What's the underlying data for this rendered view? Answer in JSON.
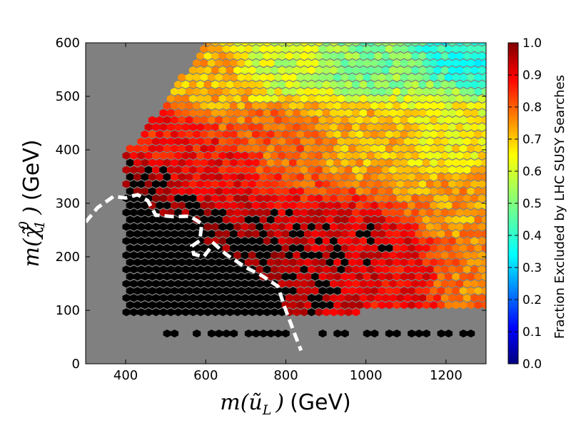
{
  "chart_data": {
    "type": "heatmap",
    "variant": "hexbin",
    "xlabel": {
      "prefix": "m(",
      "symbol": "ũ",
      "subscript": "L",
      "suffix": ")",
      "unit": "(GeV)"
    },
    "ylabel": {
      "prefix": "m(",
      "symbol": "χ̃",
      "subscript": "1",
      "superscript": "0",
      "suffix": ")",
      "unit": "(GeV)"
    },
    "xlim": [
      300,
      1300
    ],
    "ylim": [
      0,
      600
    ],
    "xticks": [
      400,
      600,
      800,
      1000,
      1200
    ],
    "yticks": [
      0,
      100,
      200,
      300,
      400,
      500,
      600
    ],
    "background_color": "#808080",
    "hex_size_gev": {
      "dx": 18.5,
      "dy": 13.3
    },
    "colorbar": {
      "label": "Fraction Excluded by LHC SUSY Searches",
      "range": [
        0.0,
        1.0
      ],
      "ticks": [
        "0.0",
        "0.1",
        "0.2",
        "0.3",
        "0.4",
        "0.5",
        "0.6",
        "0.7",
        "0.8",
        "0.9",
        "1.0"
      ],
      "colormap": "jet"
    },
    "regions": {
      "black_exclusion_region": "fraction = 1.0 (fully excluded) for low masses below the dashed line",
      "coverage_upper_left_edge": [
        [
          300,
          300
        ],
        [
          340,
          320
        ],
        [
          400,
          390
        ],
        [
          450,
          440
        ],
        [
          500,
          490
        ],
        [
          550,
          545
        ],
        [
          590,
          600
        ]
      ],
      "coverage_lower_edge": [
        [
          420,
          90
        ],
        [
          550,
          90
        ],
        [
          850,
          95
        ],
        [
          1300,
          100
        ]
      ],
      "sparse_row_y": 55
    },
    "fraction_anchors": [
      {
        "x": 420,
        "y": 320,
        "value": 1.0
      },
      {
        "x": 550,
        "y": 250,
        "value": 1.0
      },
      {
        "x": 700,
        "y": 180,
        "value": 1.0
      },
      {
        "x": 800,
        "y": 150,
        "value": 0.97
      },
      {
        "x": 900,
        "y": 200,
        "value": 0.93
      },
      {
        "x": 1000,
        "y": 200,
        "value": 0.92
      },
      {
        "x": 1100,
        "y": 150,
        "value": 0.88
      },
      {
        "x": 1250,
        "y": 150,
        "value": 0.75
      },
      {
        "x": 1250,
        "y": 300,
        "value": 0.72
      },
      {
        "x": 600,
        "y": 350,
        "value": 0.88
      },
      {
        "x": 500,
        "y": 430,
        "value": 0.86
      },
      {
        "x": 800,
        "y": 420,
        "value": 0.78
      },
      {
        "x": 1000,
        "y": 420,
        "value": 0.7
      },
      {
        "x": 1200,
        "y": 420,
        "value": 0.64
      },
      {
        "x": 600,
        "y": 520,
        "value": 0.7
      },
      {
        "x": 800,
        "y": 560,
        "value": 0.58
      },
      {
        "x": 1000,
        "y": 560,
        "value": 0.5
      },
      {
        "x": 1250,
        "y": 590,
        "value": 0.4
      }
    ],
    "dashed_contour": [
      [
        300,
        265
      ],
      [
        330,
        292
      ],
      [
        370,
        313
      ],
      [
        400,
        310
      ],
      [
        430,
        316
      ],
      [
        455,
        305
      ],
      [
        475,
        278
      ],
      [
        520,
        275
      ],
      [
        560,
        276
      ],
      [
        590,
        262
      ],
      [
        585,
        230
      ],
      [
        565,
        220
      ],
      [
        570,
        205
      ],
      [
        595,
        200
      ],
      [
        620,
        225
      ],
      [
        650,
        205
      ],
      [
        700,
        180
      ],
      [
        740,
        165
      ],
      [
        780,
        145
      ],
      [
        795,
        110
      ],
      [
        810,
        80
      ],
      [
        825,
        50
      ],
      [
        838,
        25
      ]
    ]
  }
}
